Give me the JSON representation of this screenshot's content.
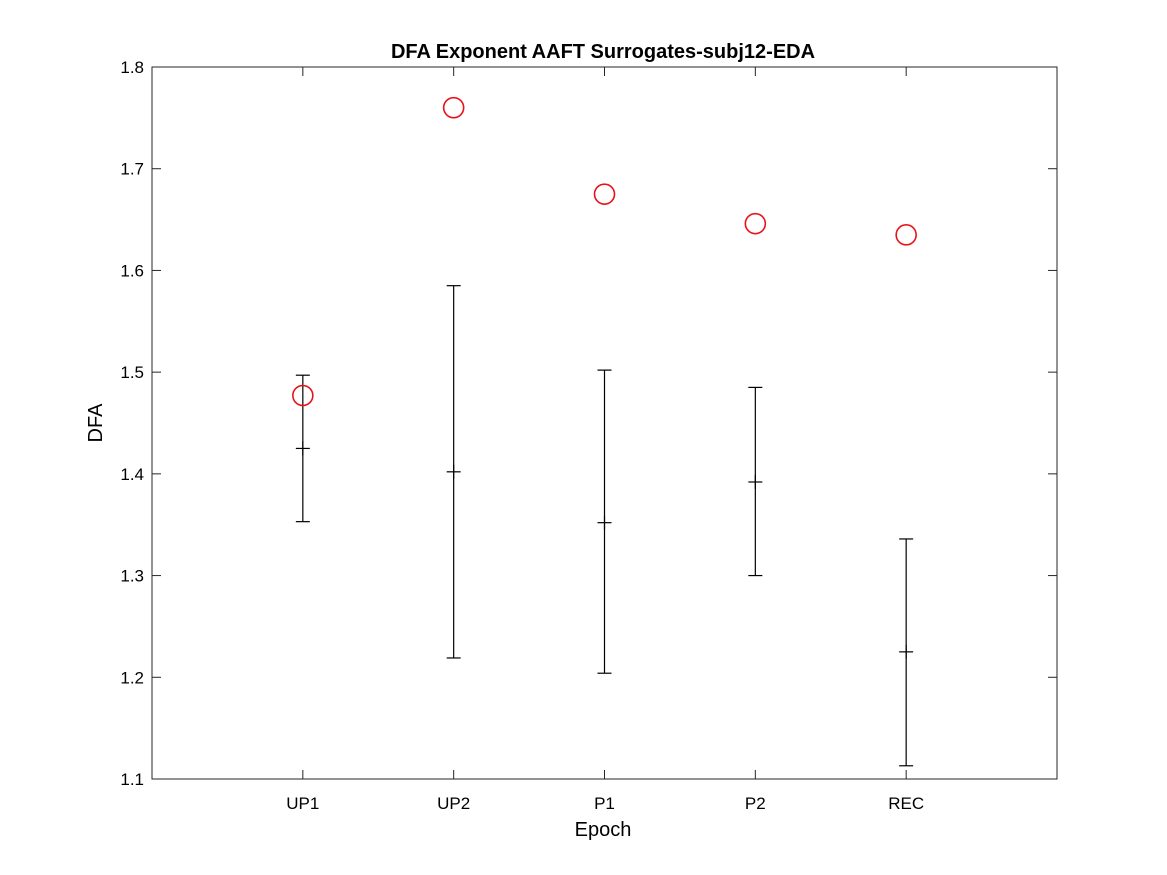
{
  "chart_data": {
    "type": "errorbar_scatter",
    "title": "DFA Exponent AAFT Surrogates-subj12-EDA",
    "xlabel": "Epoch",
    "ylabel": "DFA",
    "categories": [
      "UP1",
      "UP2",
      "P1",
      "P2",
      "REC"
    ],
    "ylim": [
      1.1,
      1.8
    ],
    "yticks": [
      "1.1",
      "1.2",
      "1.3",
      "1.4",
      "1.5",
      "1.6",
      "1.7",
      "1.8"
    ],
    "grid": false,
    "series": [
      {
        "kind": "errorbar",
        "color": "#000000",
        "mean": [
          1.425,
          1.402,
          1.352,
          1.392,
          1.225
        ],
        "lower": [
          1.353,
          1.219,
          1.204,
          1.3,
          1.113
        ],
        "upper": [
          1.497,
          1.585,
          1.502,
          1.485,
          1.336
        ]
      },
      {
        "kind": "marker",
        "marker": "circle",
        "color": "#e8131a",
        "values": [
          1.477,
          1.76,
          1.675,
          1.646,
          1.635
        ]
      }
    ]
  }
}
